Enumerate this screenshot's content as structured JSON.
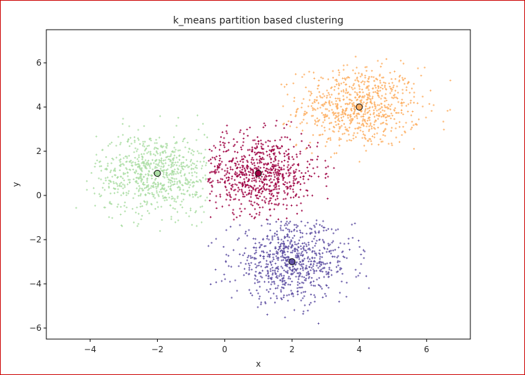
{
  "chart_data": {
    "type": "scatter",
    "title": "k_means partition based clustering",
    "xlabel": "x",
    "ylabel": "y",
    "xlim": [
      -5.3,
      7.3
    ],
    "ylim": [
      -6.5,
      7.5
    ],
    "xticks": [
      -4,
      -2,
      0,
      2,
      4,
      6
    ],
    "yticks": [
      -6,
      -4,
      -2,
      0,
      2,
      4,
      6
    ],
    "xtick_labels": [
      "−4",
      "−2",
      "0",
      "2",
      "4",
      "6"
    ],
    "ytick_labels": [
      "−6",
      "−4",
      "−2",
      "0",
      "2",
      "4",
      "6"
    ],
    "grid": false,
    "legend": "none",
    "clusters": [
      {
        "center": [
          4,
          4
        ],
        "color": "#fdae61",
        "spread": 0.9,
        "x_range": [
          1.2,
          6.8
        ],
        "y_range": [
          1.5,
          6.9
        ]
      },
      {
        "center": [
          1,
          1
        ],
        "color": "#9e0142",
        "spread": 0.9,
        "x_range": [
          -0.5,
          3.4
        ],
        "y_range": [
          -1.1,
          3.5
        ]
      },
      {
        "center": [
          -2,
          1
        ],
        "color": "#abdda4",
        "spread": 0.9,
        "x_range": [
          -4.6,
          -0.5
        ],
        "y_range": [
          -2.3,
          4.2
        ]
      },
      {
        "center": [
          2,
          -3
        ],
        "color": "#5e4fa2",
        "spread": 0.9,
        "x_range": [
          -0.6,
          4.7
        ],
        "y_range": [
          -5.9,
          -1.1
        ]
      }
    ]
  }
}
